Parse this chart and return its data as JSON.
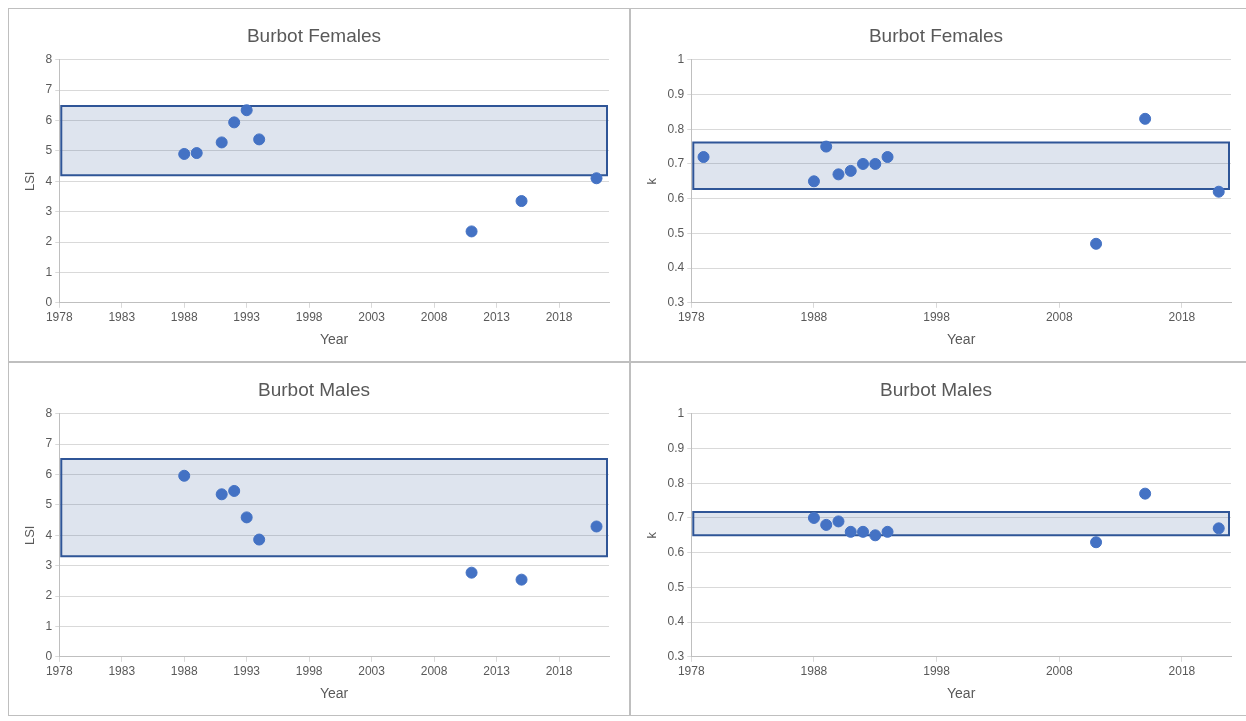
{
  "chart_data": [
    {
      "type": "scatter",
      "title": "Burbot Females",
      "xlabel": "Year",
      "ylabel": "LSI",
      "x": [
        1988,
        1989,
        1991,
        1992,
        1993,
        1994,
        2011,
        2015,
        2021
      ],
      "values": [
        4.9,
        4.93,
        5.28,
        5.94,
        6.34,
        5.38,
        2.35,
        3.35,
        4.1
      ],
      "color": "#4472c4",
      "marker": "circle",
      "xlim": [
        1978,
        2022
      ],
      "xticks": [
        1978,
        1983,
        1988,
        1993,
        1998,
        2003,
        2008,
        2013,
        2018
      ],
      "ylim": [
        0,
        8
      ],
      "yticks": [
        0,
        1,
        2,
        3,
        4,
        5,
        6,
        7,
        8
      ],
      "grid": "y",
      "bands": [
        {
          "axis": "y",
          "from": 4.2,
          "to": 6.48,
          "color": "#2f5597"
        }
      ]
    },
    {
      "type": "scatter",
      "title": "Burbot Females",
      "xlabel": "Year",
      "ylabel": "k",
      "x": [
        1979,
        1988,
        1989,
        1990,
        1991,
        1992,
        1993,
        1994,
        2011,
        2015,
        2021
      ],
      "values": [
        0.72,
        0.65,
        0.75,
        0.67,
        0.68,
        0.7,
        0.7,
        0.72,
        0.47,
        0.83,
        0.62
      ],
      "color": "#4472c4",
      "marker": "circle",
      "xlim": [
        1978,
        2022
      ],
      "xticks": [
        1978,
        1988,
        1998,
        2008,
        2018
      ],
      "ylim": [
        0.3,
        1
      ],
      "yticks": [
        0.3,
        0.4,
        0.5,
        0.6,
        0.7,
        0.8,
        0.9,
        1
      ],
      "grid": "y",
      "bands": [
        {
          "axis": "y",
          "from": 0.628,
          "to": 0.762,
          "color": "#2f5597"
        }
      ]
    },
    {
      "type": "scatter",
      "title": "Burbot Males",
      "xlabel": "Year",
      "ylabel": "LSI",
      "x": [
        1988,
        1991,
        1992,
        1993,
        1994,
        2011,
        2015,
        2021
      ],
      "values": [
        5.96,
        5.35,
        5.46,
        4.59,
        3.86,
        2.77,
        2.54,
        4.29
      ],
      "color": "#4472c4",
      "marker": "circle",
      "xlim": [
        1978,
        2022
      ],
      "xticks": [
        1978,
        1983,
        1988,
        1993,
        1998,
        2003,
        2008,
        2013,
        2018
      ],
      "ylim": [
        0,
        8
      ],
      "yticks": [
        0,
        1,
        2,
        3,
        4,
        5,
        6,
        7,
        8
      ],
      "grid": "y",
      "bands": [
        {
          "axis": "y",
          "from": 3.31,
          "to": 6.51,
          "color": "#2f5597"
        }
      ]
    },
    {
      "type": "scatter",
      "title": "Burbot Males",
      "xlabel": "Year",
      "ylabel": "k",
      "x": [
        1988,
        1989,
        1990,
        1991,
        1992,
        1993,
        1994,
        2011,
        2015,
        2021
      ],
      "values": [
        0.7,
        0.68,
        0.69,
        0.66,
        0.66,
        0.65,
        0.66,
        0.63,
        0.77,
        0.67
      ],
      "color": "#4472c4",
      "marker": "circle",
      "xlim": [
        1978,
        2022
      ],
      "xticks": [
        1978,
        1988,
        1998,
        2008,
        2018
      ],
      "ylim": [
        0.3,
        1
      ],
      "yticks": [
        0.3,
        0.4,
        0.5,
        0.6,
        0.7,
        0.8,
        0.9,
        1
      ],
      "grid": "y",
      "bands": [
        {
          "axis": "y",
          "from": 0.65,
          "to": 0.717,
          "color": "#2f5597"
        }
      ]
    }
  ]
}
